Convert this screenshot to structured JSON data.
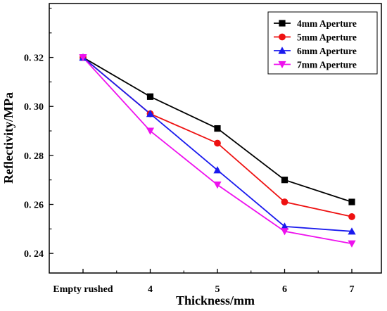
{
  "chart_data": {
    "type": "line",
    "title": "",
    "xlabel": "Thickness/mm",
    "ylabel": "Reflectivity/MPa",
    "categories": [
      "Empty rushed",
      "4",
      "5",
      "6",
      "7"
    ],
    "ylim": [
      0.232,
      0.342
    ],
    "yticks": [
      0.24,
      0.26,
      0.28,
      0.3,
      0.32
    ],
    "ytick_labels": [
      "0. 24",
      "0. 26",
      "0. 28",
      "0. 30",
      "0. 32"
    ],
    "grid": false,
    "legend_position": "top-right",
    "series": [
      {
        "name": "4mm Aperture",
        "color": "#000000",
        "marker": "square",
        "values": [
          0.32,
          0.304,
          0.291,
          0.27,
          0.261
        ]
      },
      {
        "name": "5mm Aperture",
        "color": "#ee1111",
        "marker": "circle",
        "values": [
          0.32,
          0.297,
          0.285,
          0.261,
          0.255
        ]
      },
      {
        "name": "6mm Aperture",
        "color": "#1a1aee",
        "marker": "triangle-up",
        "values": [
          0.32,
          0.297,
          0.274,
          0.251,
          0.249
        ]
      },
      {
        "name": "7mm Aperture",
        "color": "#ee11ee",
        "marker": "triangle-down",
        "values": [
          0.32,
          0.29,
          0.268,
          0.249,
          0.244
        ]
      }
    ]
  }
}
